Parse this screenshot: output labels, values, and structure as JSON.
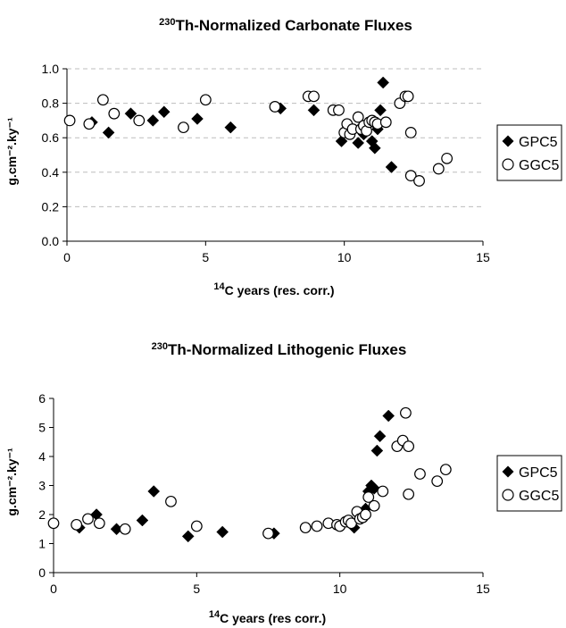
{
  "chart_data": [
    {
      "type": "scatter",
      "title_sup": "230",
      "title": "Th-Normalized Carbonate Fluxes",
      "xlabel_sup": "14",
      "xlabel": "C years (res. corr.)",
      "ylabel": "g.cm⁻².ky⁻¹",
      "xlim": [
        0,
        15
      ],
      "ylim": [
        0,
        1.0
      ],
      "x_ticks": [
        "0",
        "5",
        "10",
        "15"
      ],
      "y_ticks": [
        "0.0",
        "0.2",
        "0.4",
        "0.6",
        "0.8",
        "1.0"
      ],
      "grid": "horizontal dashed",
      "legend_position": "right",
      "series": [
        {
          "name": "GPC5",
          "marker": "filled-diamond",
          "points": [
            [
              0.9,
              0.69
            ],
            [
              1.5,
              0.63
            ],
            [
              2.3,
              0.74
            ],
            [
              3.1,
              0.7
            ],
            [
              3.5,
              0.75
            ],
            [
              4.7,
              0.71
            ],
            [
              5.9,
              0.66
            ],
            [
              7.7,
              0.77
            ],
            [
              8.9,
              0.76
            ],
            [
              9.9,
              0.58
            ],
            [
              10.5,
              0.57
            ],
            [
              10.7,
              0.62
            ],
            [
              11.0,
              0.58
            ],
            [
              11.1,
              0.54
            ],
            [
              11.2,
              0.65
            ],
            [
              11.3,
              0.76
            ],
            [
              11.4,
              0.92
            ],
            [
              11.7,
              0.43
            ]
          ]
        },
        {
          "name": "GGC5",
          "marker": "open-circle",
          "points": [
            [
              0.1,
              0.7
            ],
            [
              0.8,
              0.68
            ],
            [
              1.3,
              0.82
            ],
            [
              1.7,
              0.74
            ],
            [
              2.6,
              0.7
            ],
            [
              4.2,
              0.66
            ],
            [
              5.0,
              0.82
            ],
            [
              7.5,
              0.78
            ],
            [
              8.7,
              0.84
            ],
            [
              8.9,
              0.84
            ],
            [
              9.6,
              0.76
            ],
            [
              9.8,
              0.76
            ],
            [
              10.0,
              0.63
            ],
            [
              10.1,
              0.68
            ],
            [
              10.2,
              0.62
            ],
            [
              10.3,
              0.65
            ],
            [
              10.5,
              0.72
            ],
            [
              10.6,
              0.65
            ],
            [
              10.7,
              0.67
            ],
            [
              10.8,
              0.64
            ],
            [
              10.9,
              0.69
            ],
            [
              11.0,
              0.7
            ],
            [
              11.1,
              0.69
            ],
            [
              11.2,
              0.68
            ],
            [
              11.5,
              0.69
            ],
            [
              12.0,
              0.8
            ],
            [
              12.2,
              0.84
            ],
            [
              12.3,
              0.84
            ],
            [
              12.4,
              0.63
            ],
            [
              12.4,
              0.38
            ],
            [
              12.7,
              0.35
            ],
            [
              13.4,
              0.42
            ],
            [
              13.7,
              0.48
            ]
          ]
        }
      ]
    },
    {
      "type": "scatter",
      "title_sup": "230",
      "title": "Th-Normalized Lithogenic Fluxes",
      "xlabel_sup": "14",
      "xlabel": "C years (res corr.)",
      "ylabel": "g.cm⁻².ky⁻¹",
      "xlim": [
        0,
        15
      ],
      "ylim": [
        0,
        6
      ],
      "x_ticks": [
        "0",
        "5",
        "10",
        "15"
      ],
      "y_ticks": [
        "0",
        "1",
        "2",
        "3",
        "4",
        "5",
        "6"
      ],
      "grid": "none",
      "legend_position": "right",
      "series": [
        {
          "name": "GPC5",
          "marker": "filled-diamond",
          "points": [
            [
              0.9,
              1.55
            ],
            [
              1.5,
              2.0
            ],
            [
              2.2,
              1.5
            ],
            [
              3.1,
              1.8
            ],
            [
              3.5,
              2.8
            ],
            [
              4.7,
              1.25
            ],
            [
              5.9,
              1.4
            ],
            [
              7.7,
              1.35
            ],
            [
              10.5,
              1.55
            ],
            [
              10.9,
              2.2
            ],
            [
              11.0,
              2.8
            ],
            [
              11.1,
              3.0
            ],
            [
              11.2,
              2.9
            ],
            [
              11.3,
              4.2
            ],
            [
              11.4,
              4.7
            ],
            [
              11.7,
              5.4
            ]
          ]
        },
        {
          "name": "GGC5",
          "marker": "open-circle",
          "points": [
            [
              0.0,
              1.7
            ],
            [
              0.8,
              1.65
            ],
            [
              1.2,
              1.85
            ],
            [
              1.6,
              1.7
            ],
            [
              2.5,
              1.5
            ],
            [
              4.1,
              2.45
            ],
            [
              5.0,
              1.6
            ],
            [
              7.5,
              1.35
            ],
            [
              8.8,
              1.55
            ],
            [
              9.2,
              1.6
            ],
            [
              9.6,
              1.7
            ],
            [
              9.9,
              1.65
            ],
            [
              10.0,
              1.6
            ],
            [
              10.2,
              1.75
            ],
            [
              10.3,
              1.8
            ],
            [
              10.4,
              1.7
            ],
            [
              10.6,
              2.1
            ],
            [
              10.7,
              1.85
            ],
            [
              10.8,
              1.9
            ],
            [
              10.9,
              2.0
            ],
            [
              11.0,
              2.6
            ],
            [
              11.2,
              2.3
            ],
            [
              11.5,
              2.8
            ],
            [
              12.0,
              4.35
            ],
            [
              12.2,
              4.55
            ],
            [
              12.3,
              5.5
            ],
            [
              12.4,
              4.35
            ],
            [
              12.4,
              2.7
            ],
            [
              12.8,
              3.4
            ],
            [
              13.4,
              3.15
            ],
            [
              13.7,
              3.55
            ]
          ]
        }
      ]
    }
  ]
}
